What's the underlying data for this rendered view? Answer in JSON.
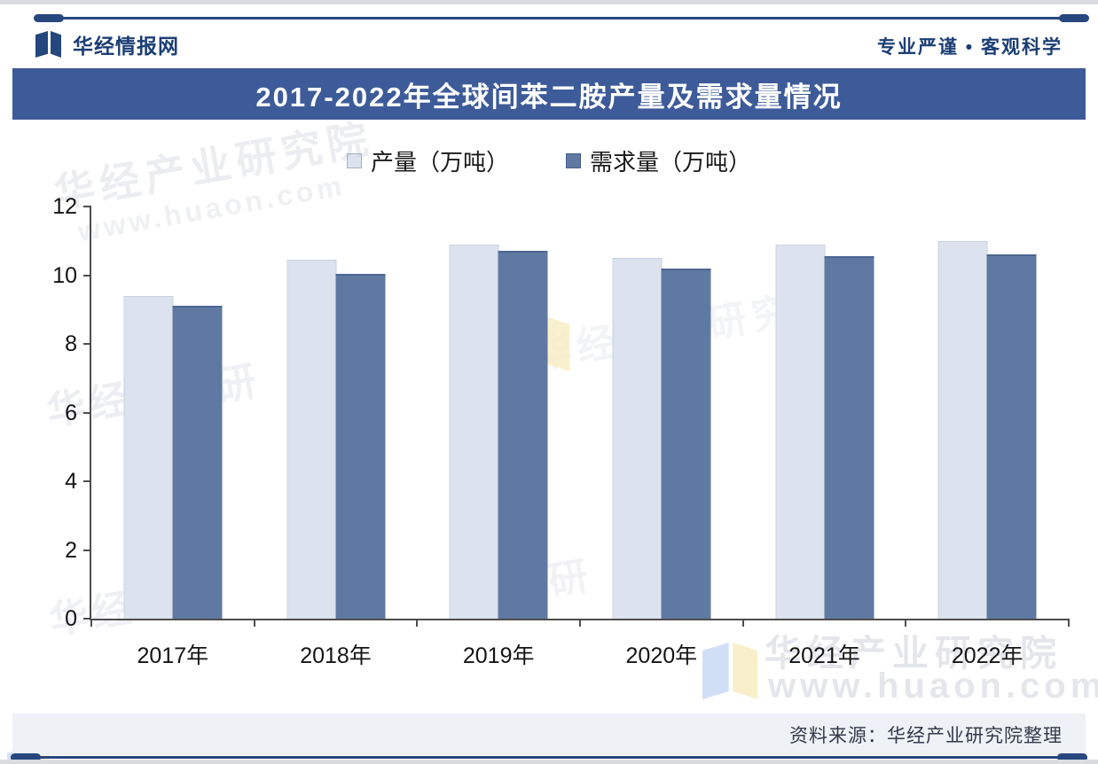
{
  "header": {
    "brand": "华经情报网",
    "tagline": "专业严谨 • 客观科学"
  },
  "title": "2017-2022年全球间苯二胺产量及需求量情况",
  "chart_data": {
    "type": "bar",
    "title": "2017-2022年全球间苯二胺产量及需求量情况",
    "categories": [
      "2017年",
      "2018年",
      "2019年",
      "2020年",
      "2021年",
      "2022年"
    ],
    "series": [
      {
        "name": "产量（万吨）",
        "color": "#dce3ef",
        "values": [
          9.4,
          10.45,
          10.9,
          10.5,
          10.9,
          11.0
        ]
      },
      {
        "name": "需求量（万吨）",
        "color": "#6079a3",
        "values": [
          9.1,
          10.05,
          10.7,
          10.2,
          10.55,
          10.6
        ]
      }
    ],
    "xlabel": "",
    "ylabel": "",
    "ylim": [
      0,
      12
    ],
    "yticks": [
      0,
      2,
      4,
      6,
      8,
      10,
      12
    ],
    "grid": false,
    "legend_position": "top-center"
  },
  "watermark": {
    "org": "华经产业研究院",
    "org_part1": "华经",
    "org_part2": "研",
    "site": "www.huaon.com"
  },
  "footer": {
    "source": "资料来源：华经产业研究院整理"
  },
  "colors": {
    "title_bar": "#3e5b99",
    "navy_line": "#27477f",
    "brand_text": "#1c3e75",
    "bar_production": "#dce3ef",
    "bar_demand": "#6079a3",
    "axis": "#4d4d4d",
    "footer_bg": "#eef1f6"
  }
}
